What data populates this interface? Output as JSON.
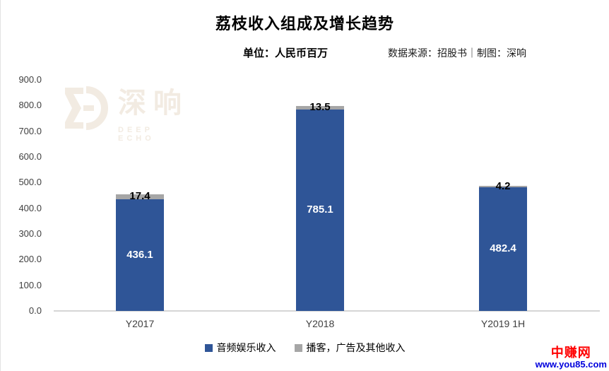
{
  "page": {
    "watermark_logo": {
      "cn": "深响",
      "en": "DEEP ECHO"
    },
    "corner_watermark": {
      "line1": "中赚网",
      "line2": "www.you85.com"
    }
  },
  "chart_data": {
    "type": "bar",
    "stacked": true,
    "title": "荔枝收入组成及增长趋势",
    "unit_label": "单位：人民币百万",
    "source_label": "数据来源：招股书｜制图：深响",
    "categories": [
      "Y2017",
      "Y2018",
      "Y2019 1H"
    ],
    "series": [
      {
        "name": "音频娱乐收入",
        "color": "#2f5597",
        "values": [
          436.1,
          785.1,
          482.4
        ]
      },
      {
        "name": "播客，广告及其他收入",
        "color": "#a6a6a6",
        "values": [
          17.4,
          13.5,
          4.2
        ]
      }
    ],
    "ylim": [
      0,
      900
    ],
    "ytick_step": 100,
    "ytick_labels": [
      "900.0",
      "800.0",
      "700.0",
      "600.0",
      "500.0",
      "400.0",
      "300.0",
      "200.0",
      "100.0",
      "0.0"
    ],
    "grid": false,
    "legend_position": "bottom",
    "axis_line_color": "#d6d6d6",
    "label_in_color": "#ffffff",
    "label_top_color": "#000000"
  }
}
